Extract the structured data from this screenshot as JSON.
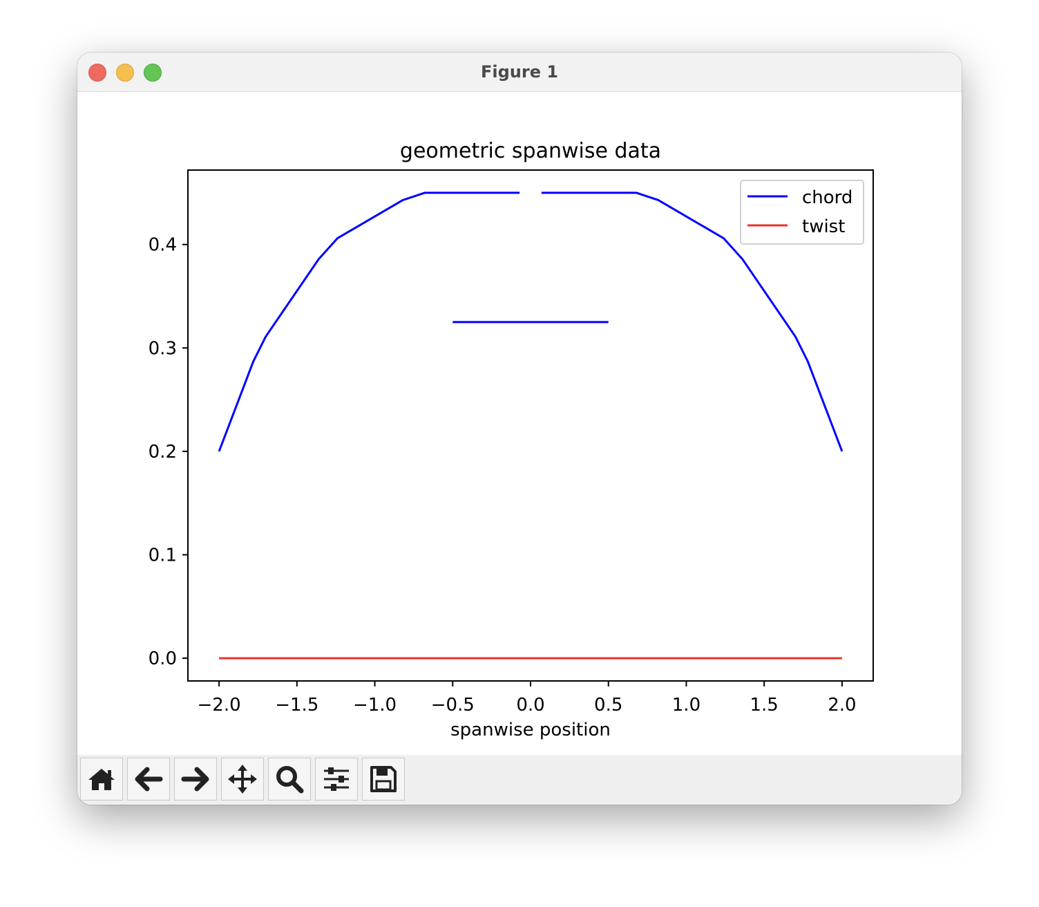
{
  "window": {
    "title": "Figure 1"
  },
  "toolbar": {
    "buttons": [
      {
        "name": "home-button",
        "icon": "home-icon"
      },
      {
        "name": "back-button",
        "icon": "arrow-left-icon"
      },
      {
        "name": "forward-button",
        "icon": "arrow-right-icon"
      },
      {
        "name": "pan-button",
        "icon": "move-icon"
      },
      {
        "name": "zoom-button",
        "icon": "magnifier-icon"
      },
      {
        "name": "configure-subplots-button",
        "icon": "sliders-icon"
      },
      {
        "name": "save-button",
        "icon": "floppy-disk-icon"
      }
    ]
  },
  "chart_data": {
    "type": "line",
    "title": "geometric spanwise data",
    "xlabel": "spanwise position",
    "ylabel": "",
    "xlim": [
      -2.2,
      2.2
    ],
    "ylim": [
      -0.022,
      0.472
    ],
    "xticks": [
      -2.0,
      -1.5,
      -1.0,
      -0.5,
      0.0,
      0.5,
      1.0,
      1.5,
      2.0
    ],
    "xtick_labels": [
      "−2.0",
      "−1.5",
      "−1.0",
      "−0.5",
      "0.0",
      "0.5",
      "1.0",
      "1.5",
      "2.0"
    ],
    "yticks": [
      0.0,
      0.1,
      0.2,
      0.3,
      0.4
    ],
    "ytick_labels": [
      "0.0",
      "0.1",
      "0.2",
      "0.3",
      "0.4"
    ],
    "grid": false,
    "legend": {
      "position": "top-right"
    },
    "series": [
      {
        "name": "chord",
        "color": "#0000ff",
        "segments": [
          {
            "x": [
              -2.0,
              -1.78,
              -1.7,
              -1.36,
              -1.24,
              -0.82,
              -0.68,
              -0.07
            ],
            "y": [
              0.2,
              0.287,
              0.311,
              0.386,
              0.406,
              0.443,
              0.45,
              0.45
            ]
          },
          {
            "x": [
              0.07,
              0.68,
              0.82,
              1.24,
              1.36,
              1.7,
              1.78,
              2.0
            ],
            "y": [
              0.45,
              0.45,
              0.443,
              0.406,
              0.386,
              0.311,
              0.287,
              0.2
            ]
          },
          {
            "x": [
              -0.5,
              0.5
            ],
            "y": [
              0.325,
              0.325
            ]
          }
        ]
      },
      {
        "name": "twist",
        "color": "#e8332a",
        "segments": [
          {
            "x": [
              -2.0,
              2.0
            ],
            "y": [
              0.0,
              0.0
            ]
          }
        ]
      }
    ]
  }
}
